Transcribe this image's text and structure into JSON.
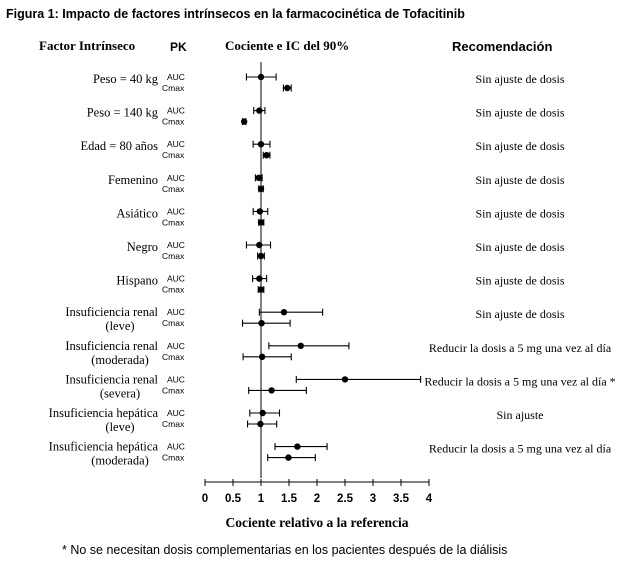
{
  "chart_data": {
    "type": "forest",
    "title": "Figura 1: Impacto de factores intrínsecos en la farmacocinética de Tofacitinib",
    "headers": {
      "factor": "Factor Intrínseco",
      "pk": "PK",
      "ratio": "Cociente e IC del 90%",
      "recommendation": "Recomendación"
    },
    "xlabel": "Cociente relativo a la referencia",
    "xlim": [
      0,
      4
    ],
    "xticks": [
      0,
      0.5,
      1,
      1.5,
      2,
      2.5,
      3,
      3.5,
      4
    ],
    "xtick_labels": [
      "0",
      "0.5",
      "1",
      "1.5",
      "2",
      "2.5",
      "3",
      "3.5",
      "4"
    ],
    "reference_line": 1,
    "groups": [
      {
        "factor": [
          "Peso = 40 kg"
        ],
        "recommendation": "Sin ajuste de dosis",
        "rows": [
          {
            "pk": "AUC",
            "est": 1.0,
            "lo": 0.74,
            "hi": 1.27
          },
          {
            "pk": "Cmax",
            "est": 1.47,
            "lo": 1.4,
            "hi": 1.54
          }
        ]
      },
      {
        "factor": [
          "Peso = 140 kg"
        ],
        "recommendation": "Sin ajuste de dosis",
        "rows": [
          {
            "pk": "AUC",
            "est": 0.97,
            "lo": 0.87,
            "hi": 1.07
          },
          {
            "pk": "Cmax",
            "est": 0.7,
            "lo": 0.67,
            "hi": 0.73
          }
        ]
      },
      {
        "factor": [
          "Edad = 80 años"
        ],
        "recommendation": "Sin ajuste de dosis",
        "rows": [
          {
            "pk": "AUC",
            "est": 1.0,
            "lo": 0.86,
            "hi": 1.16
          },
          {
            "pk": "Cmax",
            "est": 1.1,
            "lo": 1.04,
            "hi": 1.16
          }
        ]
      },
      {
        "factor": [
          "Femenino"
        ],
        "recommendation": "Sin ajuste de dosis",
        "rows": [
          {
            "pk": "AUC",
            "est": 0.96,
            "lo": 0.9,
            "hi": 1.02
          },
          {
            "pk": "Cmax",
            "est": 1.0,
            "lo": 0.96,
            "hi": 1.04
          }
        ]
      },
      {
        "factor": [
          "Asiático"
        ],
        "recommendation": "Sin ajuste de dosis",
        "rows": [
          {
            "pk": "AUC",
            "est": 0.98,
            "lo": 0.86,
            "hi": 1.12
          },
          {
            "pk": "Cmax",
            "est": 1.0,
            "lo": 0.96,
            "hi": 1.05
          }
        ]
      },
      {
        "factor": [
          "Negro"
        ],
        "recommendation": "Sin ajuste de dosis",
        "rows": [
          {
            "pk": "AUC",
            "est": 0.97,
            "lo": 0.74,
            "hi": 1.17
          },
          {
            "pk": "Cmax",
            "est": 1.0,
            "lo": 0.94,
            "hi": 1.06
          }
        ]
      },
      {
        "factor": [
          "Hispano"
        ],
        "recommendation": "Sin ajuste de dosis",
        "rows": [
          {
            "pk": "AUC",
            "est": 0.97,
            "lo": 0.85,
            "hi": 1.1
          },
          {
            "pk": "Cmax",
            "est": 1.0,
            "lo": 0.95,
            "hi": 1.05
          }
        ]
      },
      {
        "factor": [
          "Insuficiencia renal",
          "(leve)"
        ],
        "recommendation": "Sin ajuste de dosis",
        "rows": [
          {
            "pk": "AUC",
            "est": 1.41,
            "lo": 0.97,
            "hi": 2.1
          },
          {
            "pk": "Cmax",
            "est": 1.01,
            "lo": 0.67,
            "hi": 1.52
          }
        ]
      },
      {
        "factor": [
          "Insuficiencia renal",
          "(moderada)"
        ],
        "recommendation": "Reducir la dosis a 5 mg una vez al día",
        "rows": [
          {
            "pk": "AUC",
            "est": 1.71,
            "lo": 1.14,
            "hi": 2.57
          },
          {
            "pk": "Cmax",
            "est": 1.02,
            "lo": 0.68,
            "hi": 1.54
          }
        ]
      },
      {
        "factor": [
          "Insuficiencia renal",
          "(severa)"
        ],
        "recommendation": "Reducir la dosis a 5 mg una vez al día *",
        "rows": [
          {
            "pk": "AUC",
            "est": 2.5,
            "lo": 1.63,
            "hi": 3.85
          },
          {
            "pk": "Cmax",
            "est": 1.19,
            "lo": 0.78,
            "hi": 1.81
          }
        ]
      },
      {
        "factor": [
          "Insuficiencia hepática",
          "(leve)"
        ],
        "recommendation": "Sin ajuste",
        "rows": [
          {
            "pk": "AUC",
            "est": 1.03,
            "lo": 0.8,
            "hi": 1.33
          },
          {
            "pk": "Cmax",
            "est": 0.99,
            "lo": 0.76,
            "hi": 1.28
          }
        ]
      },
      {
        "factor": [
          "Insuficiencia hepática",
          "(moderada)"
        ],
        "recommendation": "Reducir la dosis a 5 mg una vez al día",
        "rows": [
          {
            "pk": "AUC",
            "est": 1.65,
            "lo": 1.25,
            "hi": 2.18
          },
          {
            "pk": "Cmax",
            "est": 1.49,
            "lo": 1.12,
            "hi": 1.97
          }
        ]
      }
    ]
  },
  "footnote": "* No se necesitan dosis complementarias en los pacientes después de la diálisis"
}
